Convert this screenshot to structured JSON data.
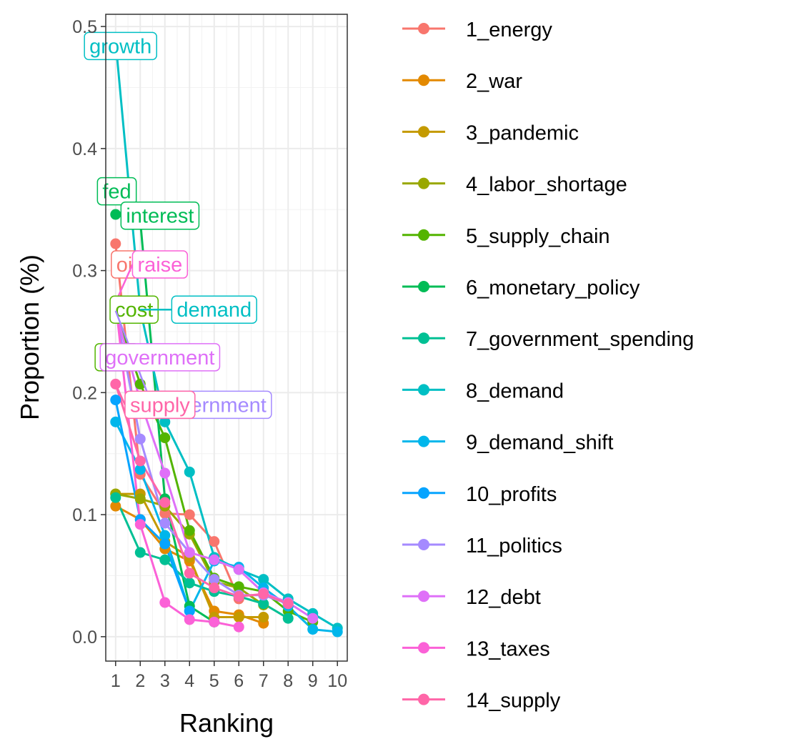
{
  "chart_data": {
    "type": "line",
    "xlabel": "Ranking",
    "ylabel": "Proportion (%)",
    "xlim": [
      0.6,
      10.4
    ],
    "ylim": [
      -0.02,
      0.51
    ],
    "x_ticks": [
      "1",
      "2",
      "3",
      "4",
      "5",
      "6",
      "7",
      "8",
      "9",
      "10"
    ],
    "y_ticks": [
      "0.0",
      "0.1",
      "0.2",
      "0.3",
      "0.4",
      "0.5"
    ],
    "y_tick_values": [
      0.0,
      0.1,
      0.2,
      0.3,
      0.4,
      0.5
    ],
    "grid": true,
    "legend_position": "right",
    "series": [
      {
        "name": "1_energy",
        "color": "#F8766D",
        "x": [
          1,
          2,
          3,
          4,
          5,
          6
        ],
        "values": [
          0.322,
          0.133,
          0.101,
          0.1,
          0.078,
          0.031
        ]
      },
      {
        "name": "2_war",
        "color": "#E38900",
        "x": [
          1,
          2,
          3,
          4,
          5,
          6,
          7
        ],
        "values": [
          0.107,
          0.096,
          0.072,
          0.062,
          0.021,
          0.018,
          0.011
        ]
      },
      {
        "name": "3_pandemic",
        "color": "#C49A00",
        "x": [
          1,
          2,
          3,
          4,
          5,
          6,
          7
        ],
        "values": [
          0.117,
          0.117,
          0.078,
          0.065,
          0.016,
          0.016,
          0.016
        ]
      },
      {
        "name": "4_labor_shortage",
        "color": "#99A800",
        "x": [
          1,
          2,
          3,
          4,
          5,
          6,
          7
        ],
        "values": [
          0.117,
          0.113,
          0.107,
          0.084,
          0.045,
          0.04,
          0.026
        ]
      },
      {
        "name": "5_supply_chain",
        "color": "#53B400",
        "x": [
          1,
          2,
          3,
          4,
          5,
          6,
          7,
          8,
          9
        ],
        "values": [
          0.267,
          0.207,
          0.163,
          0.087,
          0.048,
          0.041,
          0.037,
          0.021,
          0.012
        ]
      },
      {
        "name": "6_monetary_policy",
        "color": "#00BC56",
        "x": [
          1,
          2,
          3,
          4,
          5
        ],
        "values": [
          0.346,
          0.341,
          0.113,
          0.025,
          0.012
        ]
      },
      {
        "name": "7_government_spending",
        "color": "#00C094",
        "x": [
          1,
          2,
          3,
          4,
          5,
          6,
          7,
          8
        ],
        "values": [
          0.114,
          0.069,
          0.063,
          0.044,
          0.037,
          0.033,
          0.027,
          0.015
        ]
      },
      {
        "name": "8_demand",
        "color": "#00BFC4",
        "x": [
          1,
          2,
          3,
          4,
          5,
          6,
          7,
          8,
          9,
          10
        ],
        "values": [
          0.488,
          0.268,
          0.176,
          0.135,
          0.065,
          0.055,
          0.047,
          0.031,
          0.019,
          0.007
        ]
      },
      {
        "name": "9_demand_shift",
        "color": "#00B6EB",
        "x": [
          1,
          2,
          3,
          4,
          5,
          6,
          7,
          8,
          9,
          10
        ],
        "values": [
          0.176,
          0.137,
          0.083,
          0.021,
          0.062,
          0.057,
          0.04,
          0.025,
          0.006,
          0.004
        ]
      },
      {
        "name": "10_profits",
        "color": "#06A4FF",
        "x": [
          1,
          2,
          3,
          4
        ],
        "values": [
          0.194,
          0.096,
          0.076,
          0.021
        ]
      },
      {
        "name": "11_politics",
        "color": "#A58AFF",
        "x": [
          1,
          2,
          3,
          4,
          5,
          6,
          7,
          8
        ],
        "values": [
          0.267,
          0.162,
          0.093,
          0.069,
          0.047,
          0.034,
          0.034,
          0.027
        ]
      },
      {
        "name": "12_debt",
        "color": "#DF70F8",
        "x": [
          1,
          2,
          3,
          4,
          5,
          6,
          7,
          8,
          9
        ],
        "values": [
          0.267,
          0.193,
          0.134,
          0.069,
          0.063,
          0.055,
          0.036,
          0.028,
          0.015
        ]
      },
      {
        "name": "13_taxes",
        "color": "#FB61D7",
        "x": [
          1,
          2,
          3,
          4,
          5,
          6
        ],
        "values": [
          0.274,
          0.092,
          0.028,
          0.014,
          0.012,
          0.008
        ]
      },
      {
        "name": "14_supply",
        "color": "#FF66A8",
        "x": [
          1,
          2,
          3,
          4,
          5,
          6,
          7,
          8
        ],
        "values": [
          0.207,
          0.144,
          0.11,
          0.052,
          0.04,
          0.033,
          0.035,
          0.027
        ]
      }
    ],
    "annotations": [
      {
        "text": "growth",
        "x": 1.2,
        "y": 0.484,
        "color": "#00BFC4",
        "link_x": 1,
        "link_y": 0.488
      },
      {
        "text": "fed",
        "x": 1.05,
        "y": 0.365,
        "color": "#00BC56",
        "link_x": 1,
        "link_y": 0.346
      },
      {
        "text": "interest",
        "x": 2.8,
        "y": 0.345,
        "color": "#00BC56",
        "link_x": 2,
        "link_y": 0.341
      },
      {
        "text": "oil",
        "x": 1.45,
        "y": 0.305,
        "color": "#F8766D",
        "link_x": 1,
        "link_y": 0.322
      },
      {
        "text": "raise",
        "x": 2.8,
        "y": 0.305,
        "color": "#FB61D7",
        "link_x": 1,
        "link_y": 0.274
      },
      {
        "text": "cost",
        "x": 1.75,
        "y": 0.268,
        "color": "#53B400",
        "link_x": 1,
        "link_y": 0.267
      },
      {
        "text": "demand",
        "x": 5.0,
        "y": 0.268,
        "color": "#00BFC4",
        "link_x": 2,
        "link_y": 0.268
      },
      {
        "text": "government",
        "x": 4.9,
        "y": 0.19,
        "color": "#A58AFF",
        "link_x": 1,
        "link_y": 0.267
      },
      {
        "text": "sup",
        "x": 1.05,
        "y": 0.229,
        "color": "#53B400",
        "link_x": 1,
        "link_y": 0.267
      },
      {
        "text": "government",
        "x": 2.8,
        "y": 0.229,
        "color": "#DF70F8",
        "link_x": 1,
        "link_y": 0.267
      },
      {
        "text": "supply",
        "x": 2.8,
        "y": 0.19,
        "color": "#FF66A8",
        "link_x": 1,
        "link_y": 0.207
      }
    ]
  }
}
